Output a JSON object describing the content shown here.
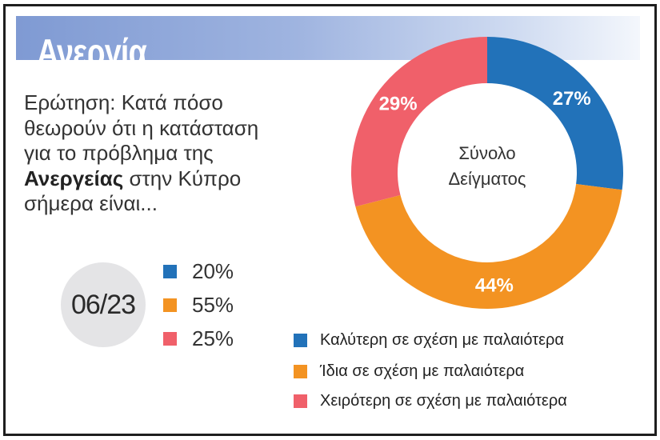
{
  "title": "Ανεργία",
  "question": {
    "line1": "Ερώτηση: Κατά πόσο",
    "line2": "θεωρούν ότι η κατάσταση",
    "line3": "για το πρόβλημα της",
    "line4_bold": "Ανεργείας",
    "line4_rest": " στην Κύπρο",
    "line5": "σήμερα είναι..."
  },
  "previous": {
    "date": "06/23",
    "items": [
      {
        "value": "20%",
        "color": "#2272b9"
      },
      {
        "value": "55%",
        "color": "#f39322"
      },
      {
        "value": "25%",
        "color": "#f0606a"
      }
    ]
  },
  "chart_data": {
    "type": "pie",
    "donut": true,
    "center_label": [
      "Σύνολο",
      "Δείγματος"
    ],
    "categories": [
      "Καλύτερη σε σχέση με παλαιότερα",
      "Ίδια σε σχέση με παλαιότερα",
      "Χειρότερη σε σχέση με παλαιότερα"
    ],
    "values": [
      27,
      44,
      29
    ],
    "labels": [
      "27%",
      "44%",
      "29%"
    ],
    "colors": [
      "#2272b9",
      "#f39322",
      "#f0606a"
    ],
    "legend_position": "bottom"
  }
}
